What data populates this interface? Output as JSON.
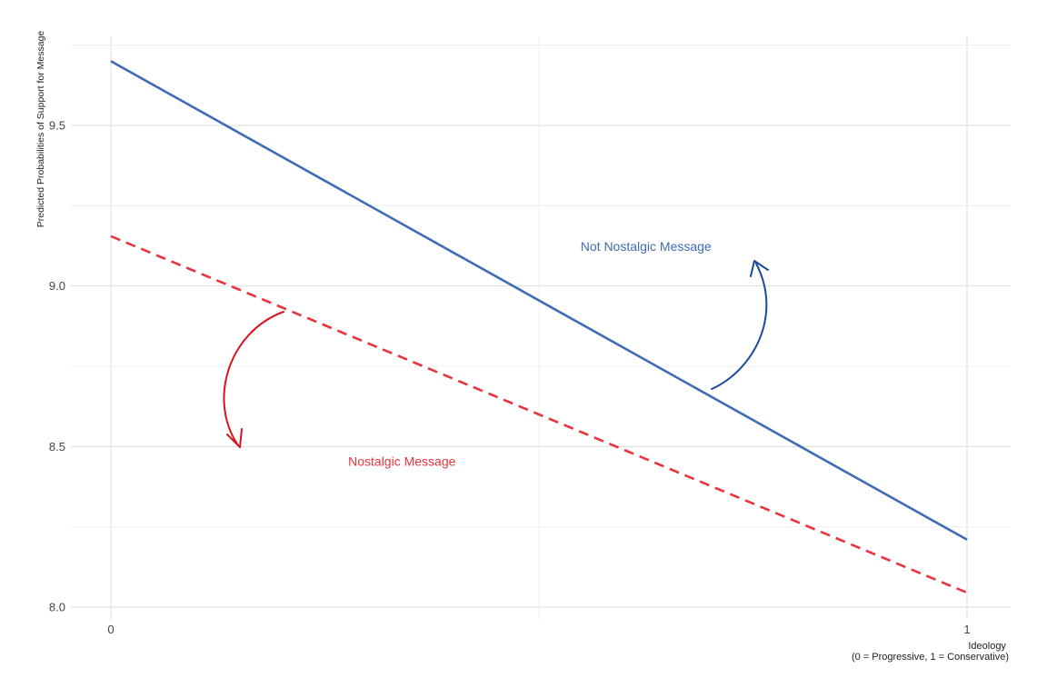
{
  "chart_data": {
    "type": "line",
    "title": "",
    "xlabel": [
      "Ideology",
      "(0 = Progressive, 1 = Conservative)"
    ],
    "ylabel": "Predicted Probabilities of Support for Message",
    "xlim": [
      -0.04,
      1.05
    ],
    "ylim": [
      7.98,
      9.76
    ],
    "xticks": [
      0,
      1
    ],
    "xtick_labels": [
      "0",
      "1"
    ],
    "yticks": [
      8.0,
      8.5,
      9.0,
      9.5
    ],
    "ytick_labels": [
      "8.0",
      "8.5",
      "9.0",
      "9.5"
    ],
    "grid": true,
    "legend": "none",
    "series": [
      {
        "name": "Not Nostalgic Message",
        "x": [
          0,
          1
        ],
        "values": [
          9.7,
          8.21
        ],
        "color": "#3f6cb5",
        "linestyle": "solid"
      },
      {
        "name": "Nostalgic Message",
        "x": [
          0,
          1
        ],
        "values": [
          9.155,
          8.045
        ],
        "color": "#e8343d",
        "linestyle": "dashed"
      }
    ],
    "annotations": [
      {
        "text": "Not Nostalgic Message",
        "color": "#3f6cb5",
        "x": 0.625,
        "y": 9.11,
        "arrow_color": "#1a4a9a"
      },
      {
        "text": "Nostalgic Message",
        "color": "#e8343d",
        "x": 0.34,
        "y": 8.44,
        "arrow_color": "#d9131d"
      }
    ]
  }
}
